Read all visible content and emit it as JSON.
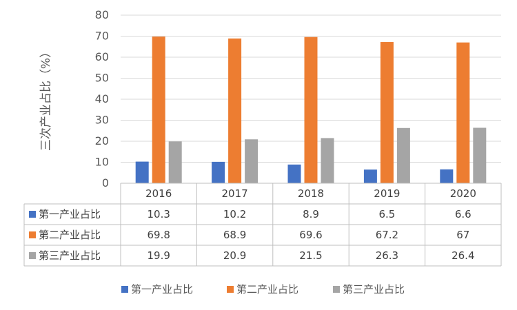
{
  "chart_data": {
    "type": "bar",
    "title": "",
    "xlabel": "",
    "ylabel": "三次产业占比（%）",
    "ylim": [
      0,
      80
    ],
    "yticks": [
      0,
      10,
      20,
      30,
      40,
      50,
      60,
      70,
      80
    ],
    "grid": true,
    "legend": "bottom",
    "categories": [
      "2016",
      "2017",
      "2018",
      "2019",
      "2020"
    ],
    "series": [
      {
        "name": "第一产业占比",
        "color": "#4472c4",
        "values": [
          10.3,
          10.2,
          8.9,
          6.5,
          6.6
        ],
        "labels": [
          "10.3",
          "10.2",
          "8.9",
          "6.5",
          "6.6"
        ]
      },
      {
        "name": "第二产业占比",
        "color": "#ed7d31",
        "values": [
          69.8,
          68.9,
          69.6,
          67.2,
          67
        ],
        "labels": [
          "69.8",
          "68.9",
          "69.6",
          "67.2",
          "67"
        ]
      },
      {
        "name": "第三产业占比",
        "color": "#a5a5a5",
        "values": [
          19.9,
          20.9,
          21.5,
          26.3,
          26.4
        ],
        "labels": [
          "19.9",
          "20.9",
          "21.5",
          "26.3",
          "26.4"
        ]
      }
    ],
    "data_table": true
  }
}
